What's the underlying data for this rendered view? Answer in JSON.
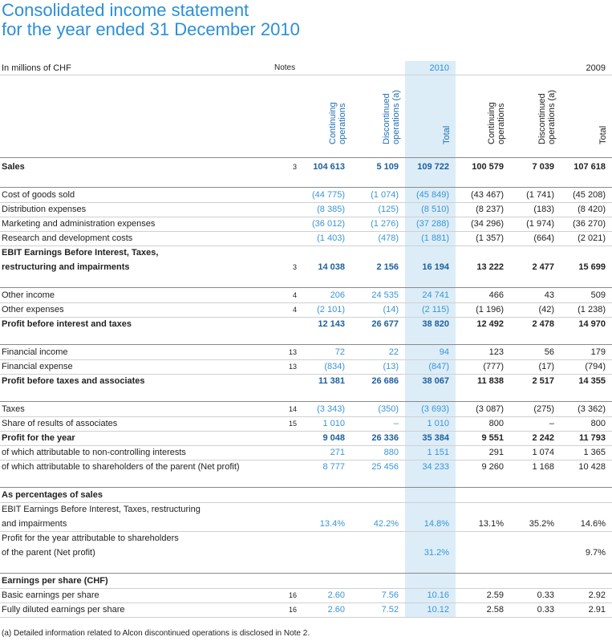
{
  "header": {
    "title": [
      "Consolidated income statement",
      "for the year ended 31 December 2010"
    ]
  },
  "table": {
    "unit_label": "In millions of CHF",
    "notes_label": "Notes",
    "years": [
      "2010",
      "2009"
    ],
    "column_labels": [
      "Continuing operations",
      "Discontinued operations (a)",
      "Total",
      "Continuing operations",
      "Discontinued operations (a)",
      "Total"
    ],
    "sections": [
      {
        "rows": [
          {
            "label": [
              "Sales"
            ],
            "note": "3",
            "cells": [
              "104 613",
              "5 109",
              "109 722",
              "100 579",
              "7 039",
              "107 618"
            ],
            "bold": true
          }
        ]
      },
      {
        "rows": [
          {
            "label": [
              "Cost of goods sold"
            ],
            "cells": [
              "(44 775)",
              "(1 074)",
              "(45 849)",
              "(43 467)",
              "(1 741)",
              "(45 208)"
            ]
          },
          {
            "label": [
              "Distribution expenses"
            ],
            "cells": [
              "(8 385)",
              "(125)",
              "(8 510)",
              "(8 237)",
              "(183)",
              "(8 420)"
            ]
          },
          {
            "label": [
              "Marketing and administration expenses"
            ],
            "cells": [
              "(36 012)",
              "(1 276)",
              "(37 288)",
              "(34 296)",
              "(1 974)",
              "(36 270)"
            ]
          },
          {
            "label": [
              "Research and development costs"
            ],
            "cells": [
              "(1 403)",
              "(478)",
              "(1 881)",
              "(1 357)",
              "(664)",
              "(2 021)"
            ]
          },
          {
            "label": [
              "EBIT Earnings Before Interest, Taxes,",
              "restructuring and impairments"
            ],
            "note": "3",
            "cells": [
              "14 038",
              "2 156",
              "16 194",
              "13 222",
              "2 477",
              "15 699"
            ],
            "bold": true
          }
        ]
      },
      {
        "rows": [
          {
            "label": [
              "Other income"
            ],
            "note": "4",
            "cells": [
              "206",
              "24 535",
              "24 741",
              "466",
              "43",
              "509"
            ]
          },
          {
            "label": [
              "Other expenses"
            ],
            "note": "4",
            "cells": [
              "(2 101)",
              "(14)",
              "(2 115)",
              "(1 196)",
              "(42)",
              "(1 238)"
            ]
          },
          {
            "label": [
              "Profit before interest and taxes"
            ],
            "cells": [
              "12 143",
              "26 677",
              "38 820",
              "12 492",
              "2 478",
              "14 970"
            ],
            "bold": true
          }
        ]
      },
      {
        "rows": [
          {
            "label": [
              "Financial income"
            ],
            "note": "13",
            "cells": [
              "72",
              "22",
              "94",
              "123",
              "56",
              "179"
            ]
          },
          {
            "label": [
              "Financial expense"
            ],
            "note": "13",
            "cells": [
              "(834)",
              "(13)",
              "(847)",
              "(777)",
              "(17)",
              "(794)"
            ]
          },
          {
            "label": [
              "Profit before taxes and associates"
            ],
            "cells": [
              "11 381",
              "26 686",
              "38 067",
              "11 838",
              "2 517",
              "14 355"
            ],
            "bold": true
          }
        ]
      },
      {
        "rows": [
          {
            "label": [
              "Taxes"
            ],
            "note": "14",
            "cells": [
              "(3 343)",
              "(350)",
              "(3 693)",
              "(3 087)",
              "(275)",
              "(3 362)"
            ]
          },
          {
            "label": [
              "Share of results of associates"
            ],
            "note": "15",
            "cells": [
              "1 010",
              "–",
              "1 010",
              "800",
              "–",
              "800"
            ]
          },
          {
            "label": [
              "Profit for the year"
            ],
            "cells": [
              "9 048",
              "26 336",
              "35 384",
              "9 551",
              "2 242",
              "11 793"
            ],
            "bold": true
          },
          {
            "label": [
              "of which attributable to non-controlling interests"
            ],
            "cells": [
              "271",
              "880",
              "1 151",
              "291",
              "1 074",
              "1 365"
            ]
          },
          {
            "label": [
              "of which attributable to shareholders of the parent (Net profit)"
            ],
            "cells": [
              "8 777",
              "25 456",
              "34 233",
              "9 260",
              "1 168",
              "10 428"
            ]
          }
        ]
      },
      {
        "rows": [
          {
            "label": [
              "As percentages of sales"
            ],
            "bold": true
          },
          {
            "label": [
              "EBIT Earnings Before Interest, Taxes, restructuring",
              "and impairments"
            ],
            "cells": [
              "13.4%",
              "42.2%",
              "14.8%",
              "13.1%",
              "35.2%",
              "14.6%"
            ]
          },
          {
            "label": [
              "Profit for the year attributable to shareholders",
              "of the parent (Net profit)"
            ],
            "cells": [
              null,
              null,
              "31.2%",
              null,
              null,
              "9.7%"
            ]
          }
        ]
      },
      {
        "rows": [
          {
            "label": [
              "Earnings per share (CHF)"
            ],
            "bold": true
          },
          {
            "label": [
              "Basic earnings per share"
            ],
            "note": "16",
            "cells": [
              "2.60",
              "7.56",
              "10.16",
              "2.59",
              "0.33",
              "2.92"
            ]
          },
          {
            "label": [
              "Fully diluted earnings per share"
            ],
            "note": "16",
            "cells": [
              "2.60",
              "7.52",
              "10.12",
              "2.58",
              "0.33",
              "2.91"
            ]
          }
        ]
      }
    ]
  },
  "footnote": "(a) Detailed information related to Alcon discontinued operations is disclosed in Note 2."
}
